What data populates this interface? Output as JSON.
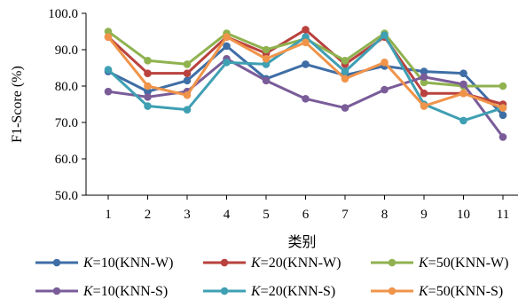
{
  "chart_data": {
    "type": "line",
    "title": "",
    "xlabel": "类别",
    "ylabel": "F1-Score (%)",
    "ylim": [
      50.0,
      100.0
    ],
    "yticks": [
      "50.0",
      "60.0",
      "70.0",
      "80.0",
      "90.0",
      "100.0"
    ],
    "categories": [
      "1",
      "2",
      "3",
      "4",
      "5",
      "6",
      "7",
      "8",
      "9",
      "10",
      "11"
    ],
    "grid": false,
    "legend_position": "bottom",
    "series": [
      {
        "name": "K=10(KNN-W)",
        "name_parts": {
          "italic": "K",
          "rest": "=10(KNN-W)"
        },
        "color": "#3f6ea6",
        "values": [
          84.0,
          78.5,
          81.5,
          91.0,
          82.0,
          86.0,
          83.0,
          85.5,
          84.0,
          83.5,
          72.0
        ]
      },
      {
        "name": "K=20(KNN-W)",
        "name_parts": {
          "italic": "K",
          "rest": "=20(KNN-W)"
        },
        "color": "#b9423e",
        "values": [
          93.5,
          83.5,
          83.5,
          93.5,
          89.0,
          95.5,
          86.0,
          93.5,
          78.0,
          78.0,
          75.0
        ]
      },
      {
        "name": "K=50(KNN-W)",
        "name_parts": {
          "italic": "K",
          "rest": "=50(KNN-W)"
        },
        "color": "#8fb24f",
        "values": [
          95.0,
          87.0,
          86.0,
          94.5,
          90.0,
          93.0,
          87.0,
          94.5,
          81.0,
          80.0,
          80.0
        ]
      },
      {
        "name": "K=10(KNN-S)",
        "name_parts": {
          "italic": "K",
          "rest": "=10(KNN-S)"
        },
        "color": "#7a5c99",
        "values": [
          78.5,
          77.0,
          78.5,
          87.5,
          81.5,
          76.5,
          74.0,
          79.0,
          82.5,
          80.5,
          66.0
        ]
      },
      {
        "name": "K=20(KNN-S)",
        "name_parts": {
          "italic": "K",
          "rest": "=20(KNN-S)"
        },
        "color": "#3f9fb3",
        "values": [
          84.5,
          74.5,
          73.5,
          86.5,
          86.0,
          93.5,
          84.0,
          94.0,
          75.0,
          70.5,
          74.0
        ]
      },
      {
        "name": "K=50(KNN-S)",
        "name_parts": {
          "italic": "K",
          "rest": "=50(KNN-S)"
        },
        "color": "#f0944a",
        "values": [
          93.5,
          80.0,
          77.5,
          93.5,
          87.5,
          92.0,
          82.0,
          86.5,
          74.5,
          78.0,
          74.0
        ]
      }
    ]
  }
}
